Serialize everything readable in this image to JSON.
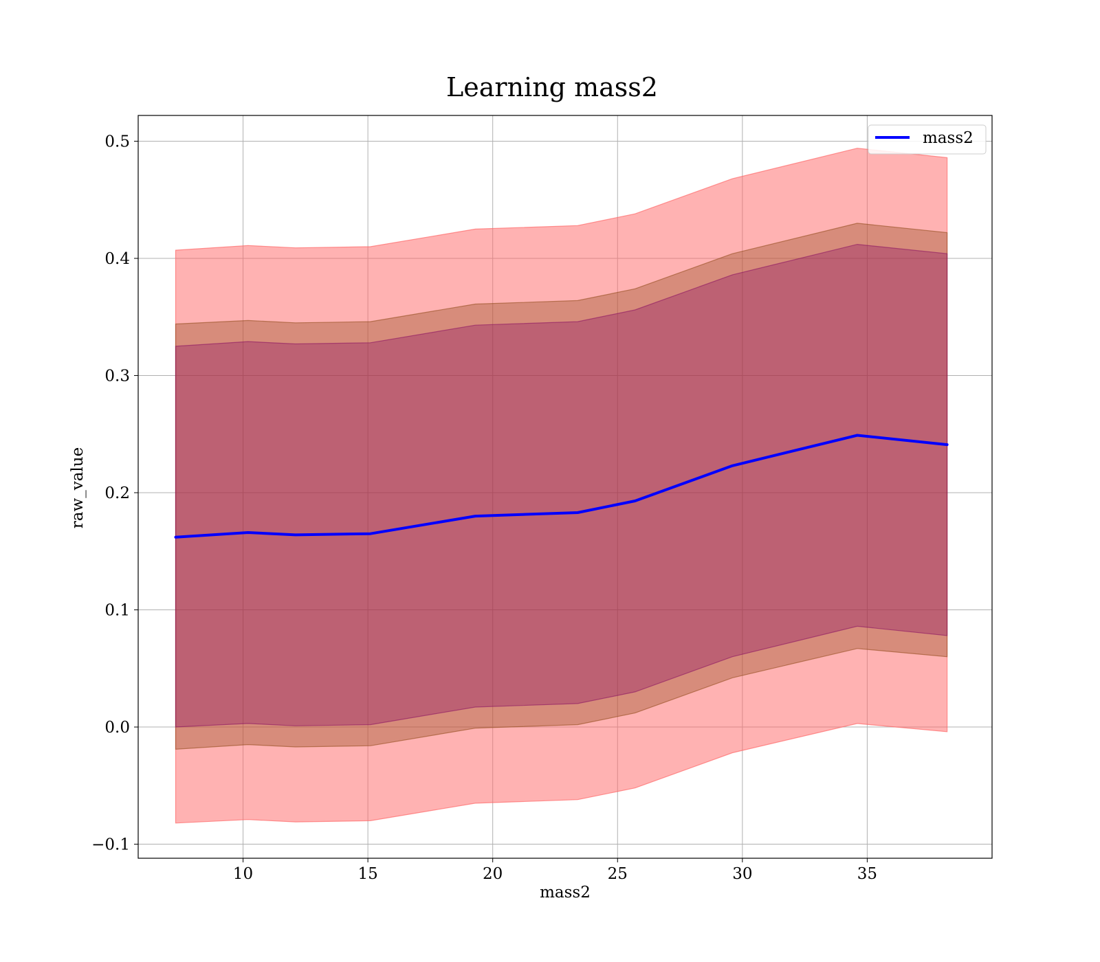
{
  "chart_data": {
    "type": "area",
    "title": "Learning mass2",
    "xlabel": "mass2",
    "ylabel": "raw_value",
    "xlim": [
      5.8,
      40.0
    ],
    "ylim": [
      -0.112,
      0.522
    ],
    "x_ticks": [
      10,
      15,
      20,
      25,
      30,
      35
    ],
    "x_tick_labels": [
      "10",
      "15",
      "20",
      "25",
      "30",
      "35"
    ],
    "y_ticks": [
      -0.1,
      0.0,
      0.1,
      0.2,
      0.3,
      0.4,
      0.5
    ],
    "y_tick_labels": [
      "−0.1",
      "0.0",
      "0.1",
      "0.2",
      "0.3",
      "0.4",
      "0.5"
    ],
    "grid": true,
    "legend_position": "top-right",
    "x": [
      7.3,
      10.2,
      12.1,
      15.1,
      19.3,
      23.4,
      25.7,
      29.6,
      34.6,
      38.2
    ],
    "series": [
      {
        "name": "mass2",
        "color": "#0000ff",
        "values": [
          0.162,
          0.166,
          0.164,
          0.165,
          0.18,
          0.183,
          0.193,
          0.223,
          0.249,
          0.241
        ]
      }
    ],
    "bands": [
      {
        "color": "#ff6666",
        "opacity": 0.5,
        "upper": [
          0.407,
          0.411,
          0.409,
          0.41,
          0.425,
          0.428,
          0.438,
          0.468,
          0.494,
          0.486
        ],
        "lower": [
          -0.082,
          -0.079,
          -0.081,
          -0.08,
          -0.065,
          -0.062,
          -0.052,
          -0.022,
          0.003,
          -0.004
        ]
      },
      {
        "color": "#8b4513",
        "opacity": 0.35,
        "upper": [
          0.344,
          0.347,
          0.345,
          0.346,
          0.361,
          0.364,
          0.374,
          0.404,
          0.43,
          0.422
        ],
        "lower": [
          -0.019,
          -0.015,
          -0.017,
          -0.016,
          -0.001,
          0.002,
          0.012,
          0.042,
          0.067,
          0.06
        ]
      },
      {
        "color": "#800060",
        "opacity": 0.3,
        "upper": [
          0.325,
          0.329,
          0.327,
          0.328,
          0.343,
          0.346,
          0.356,
          0.386,
          0.412,
          0.404
        ],
        "lower": [
          0.0,
          0.003,
          0.001,
          0.002,
          0.017,
          0.02,
          0.03,
          0.06,
          0.086,
          0.078
        ]
      }
    ]
  }
}
